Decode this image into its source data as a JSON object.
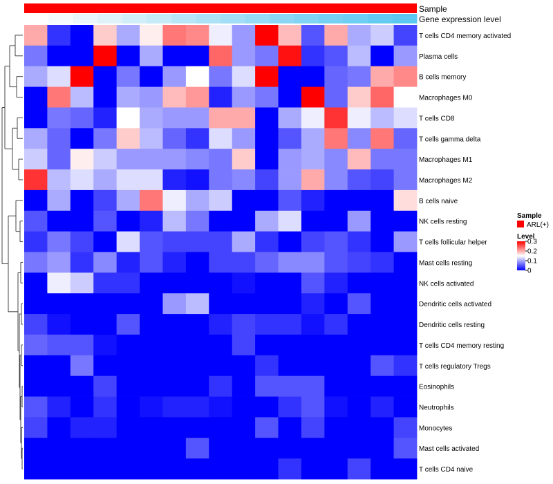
{
  "chart_data": {
    "type": "heatmap",
    "annotation_rows": {
      "sample_label": "Sample",
      "gene_label": "Gene expression level",
      "sample_color": "#ff0000",
      "gene_colors": [
        "#ffffff",
        "#f4fafd",
        "#eaf6fb",
        "#dff2fa",
        "#d2eef8",
        "#c6eaf8",
        "#b9e6f7",
        "#ade2f6",
        "#a2def6",
        "#96daf5",
        "#8ad6f4",
        "#80d3f3",
        "#76d0f3",
        "#6dcdf2",
        "#64caf2",
        "#5cc8f1"
      ]
    },
    "rows": [
      "T cells CD4 memory activated",
      "Plasma cells",
      "B cells memory",
      "Macrophages M0",
      "T cells CD8",
      "T cells gamma delta",
      "Macrophages M1",
      "Macrophages M2",
      "B cells naive",
      "NK cells resting",
      "T cells follicular helper",
      "Mast cells resting",
      "NK cells activated",
      "Dendritic cells activated",
      "Dendritic cells resting",
      "T cells CD4 memory resting",
      "T cells regulatory  Tregs",
      "Eosinophils",
      "Neutrophils",
      "Monocytes",
      "Mast cells activated",
      "T cells CD4 naive"
    ],
    "values": [
      [
        0.2,
        0.03,
        0.0,
        0.18,
        0.1,
        0.16,
        0.23,
        0.22,
        0.14,
        0.09,
        0.3,
        0.19,
        0.05,
        0.2,
        0.1,
        0.12,
        0.04
      ],
      [
        0.07,
        0.0,
        0.0,
        0.3,
        0.0,
        0.1,
        0.0,
        0.0,
        0.24,
        0.09,
        0.07,
        0.29,
        0.03,
        0.05,
        0.11,
        0.0,
        0.09
      ],
      [
        0.1,
        0.13,
        0.3,
        0.0,
        0.07,
        0.0,
        0.09,
        0.15,
        0.07,
        0.13,
        0.3,
        0.0,
        0.0,
        0.06,
        0.07,
        0.2,
        0.22
      ],
      [
        0.0,
        0.23,
        0.11,
        0.0,
        0.1,
        0.09,
        0.19,
        0.21,
        0.02,
        0.09,
        0.07,
        0.0,
        0.3,
        0.06,
        0.18,
        0.24,
        0.15
      ],
      [
        0.0,
        0.07,
        0.06,
        0.02,
        0.15,
        0.1,
        0.09,
        0.09,
        0.2,
        0.2,
        0.0,
        0.1,
        0.14,
        0.27,
        0.14,
        0.11,
        0.13
      ],
      [
        0.1,
        0.06,
        0.0,
        0.07,
        0.18,
        0.11,
        0.06,
        0.03,
        0.13,
        0.09,
        0.0,
        0.05,
        0.1,
        0.23,
        0.08,
        0.23,
        0.06
      ],
      [
        0.12,
        0.06,
        0.16,
        0.12,
        0.09,
        0.09,
        0.09,
        0.08,
        0.07,
        0.18,
        0.0,
        0.09,
        0.1,
        0.08,
        0.19,
        0.07,
        0.07
      ],
      [
        0.27,
        0.11,
        0.13,
        0.1,
        0.13,
        0.13,
        0.02,
        0.01,
        0.07,
        0.08,
        0.04,
        0.09,
        0.2,
        0.08,
        0.05,
        0.04,
        0.07
      ],
      [
        0.0,
        0.1,
        0.0,
        0.04,
        0.1,
        0.23,
        0.14,
        0.1,
        0.12,
        0.0,
        0.0,
        0.05,
        0.02,
        0.0,
        0.0,
        0.0,
        0.17
      ],
      [
        0.05,
        0.0,
        0.0,
        0.05,
        0.0,
        0.02,
        0.11,
        0.07,
        0.0,
        0.0,
        0.1,
        0.13,
        0.0,
        0.0,
        0.09,
        0.0,
        0.0
      ],
      [
        0.03,
        0.07,
        0.04,
        0.0,
        0.13,
        0.05,
        0.04,
        0.04,
        0.04,
        0.1,
        0.03,
        0.0,
        0.04,
        0.05,
        0.03,
        0.0,
        0.09
      ],
      [
        0.07,
        0.09,
        0.03,
        0.08,
        0.02,
        0.05,
        0.02,
        0.0,
        0.04,
        0.04,
        0.06,
        0.08,
        0.08,
        0.05,
        0.04,
        0.03,
        0.0
      ],
      [
        0.0,
        0.14,
        0.12,
        0.03,
        0.03,
        0.0,
        0.0,
        0.0,
        0.0,
        0.01,
        0.0,
        0.0,
        0.05,
        0.02,
        0.0,
        0.0,
        0.0
      ],
      [
        0.0,
        0.0,
        0.0,
        0.0,
        0.0,
        0.0,
        0.09,
        0.11,
        0.0,
        0.0,
        0.0,
        0.0,
        0.02,
        0.0,
        0.05,
        0.0,
        0.0
      ],
      [
        0.04,
        0.01,
        0.0,
        0.0,
        0.05,
        0.0,
        0.0,
        0.0,
        0.02,
        0.04,
        0.03,
        0.03,
        0.01,
        0.03,
        0.0,
        0.0,
        0.0
      ],
      [
        0.06,
        0.05,
        0.05,
        0.01,
        0.0,
        0.0,
        0.0,
        0.0,
        0.0,
        0.04,
        0.0,
        0.0,
        0.0,
        0.0,
        0.0,
        0.0,
        0.0
      ],
      [
        0.0,
        0.0,
        0.07,
        0.0,
        0.0,
        0.0,
        0.0,
        0.0,
        0.0,
        0.0,
        0.03,
        0.0,
        0.0,
        0.0,
        0.0,
        0.05,
        0.03
      ],
      [
        0.0,
        0.0,
        0.0,
        0.04,
        0.0,
        0.0,
        0.0,
        0.0,
        0.03,
        0.0,
        0.05,
        0.05,
        0.05,
        0.0,
        0.0,
        0.0,
        0.0
      ],
      [
        0.05,
        0.02,
        0.0,
        0.03,
        0.0,
        0.01,
        0.02,
        0.02,
        0.01,
        0.0,
        0.0,
        0.03,
        0.05,
        0.01,
        0.0,
        0.02,
        0.0
      ],
      [
        0.04,
        0.0,
        0.02,
        0.02,
        0.0,
        0.0,
        0.0,
        0.0,
        0.0,
        0.0,
        0.05,
        0.0,
        0.04,
        0.0,
        0.0,
        0.0,
        0.04
      ],
      [
        0.0,
        0.0,
        0.0,
        0.0,
        0.0,
        0.0,
        0.0,
        0.05,
        0.0,
        0.0,
        0.0,
        0.0,
        0.0,
        0.0,
        0.0,
        0.0,
        0.05
      ],
      [
        0.0,
        0.0,
        0.0,
        0.0,
        0.0,
        0.0,
        0.0,
        0.0,
        0.0,
        0.0,
        0.0,
        0.03,
        0.0,
        0.0,
        0.04,
        0.0,
        0.0
      ]
    ],
    "scale": {
      "min": 0,
      "max": 0.3,
      "low_color": "#0000ff",
      "mid_color": "#ffffff",
      "high_color": "#ff0000"
    },
    "legend": {
      "position": "right",
      "sample_title": "Sample",
      "sample_entry": "ARL(+)",
      "level_title": "Level",
      "level_ticks": [
        {
          "value": 0.3,
          "label": "0.3"
        },
        {
          "value": 0.2,
          "label": "0.2"
        },
        {
          "value": 0.1,
          "label": "0.1"
        },
        {
          "value": 0,
          "label": "0"
        }
      ]
    },
    "row_dendrogram": "left"
  }
}
